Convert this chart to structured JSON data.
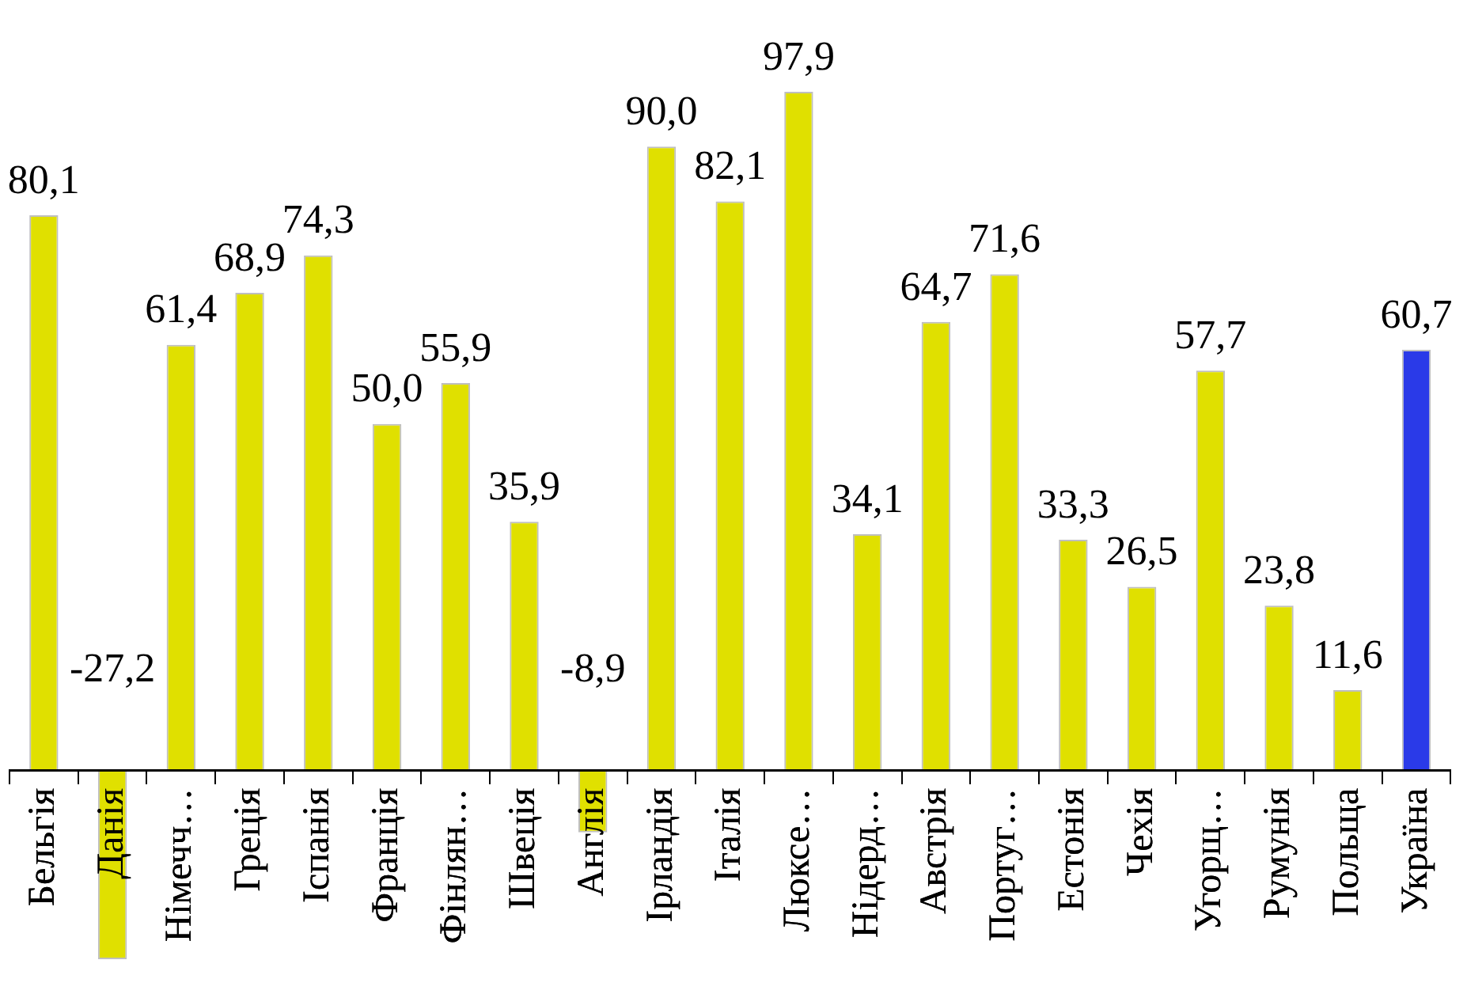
{
  "chart_data": {
    "type": "bar",
    "categories": [
      "Бельгія",
      "Данія",
      "Німечч…",
      "Греція",
      "Іспанія",
      "Франція",
      "Фінлян…",
      "Швеція",
      "Англія",
      "Ірландія",
      "Італія",
      "Люксе…",
      "Нідерд…",
      "Австрія",
      "Португ…",
      "Естонія",
      "Чехія",
      "Угорщ…",
      "Румунія",
      "Польща",
      "Україна"
    ],
    "values": [
      80.1,
      -27.2,
      61.4,
      68.9,
      74.3,
      50.0,
      55.9,
      35.9,
      -8.9,
      90.0,
      82.1,
      97.9,
      34.1,
      64.7,
      71.6,
      33.3,
      26.5,
      57.7,
      23.8,
      11.6,
      60.7
    ],
    "colors": [
      "#e0e000",
      "#e0e000",
      "#e0e000",
      "#e0e000",
      "#e0e000",
      "#e0e000",
      "#e0e000",
      "#e0e000",
      "#e0e000",
      "#e0e000",
      "#e0e000",
      "#e0e000",
      "#e0e000",
      "#e0e000",
      "#e0e000",
      "#e0e000",
      "#e0e000",
      "#e0e000",
      "#e0e000",
      "#e0e000",
      "#2a3ae8"
    ],
    "value_labels": [
      "80,1",
      "-27,2",
      "61,4",
      "68,9",
      "74,3",
      "50,0",
      "55,9",
      "35,9",
      "-8,9",
      "90,0",
      "82,1",
      "97,9",
      "34,1",
      "64,7",
      "71,6",
      "33,3",
      "26,5",
      "57,7",
      "23,8",
      "11,6",
      "60,7"
    ],
    "legend": false,
    "grid": false
  }
}
